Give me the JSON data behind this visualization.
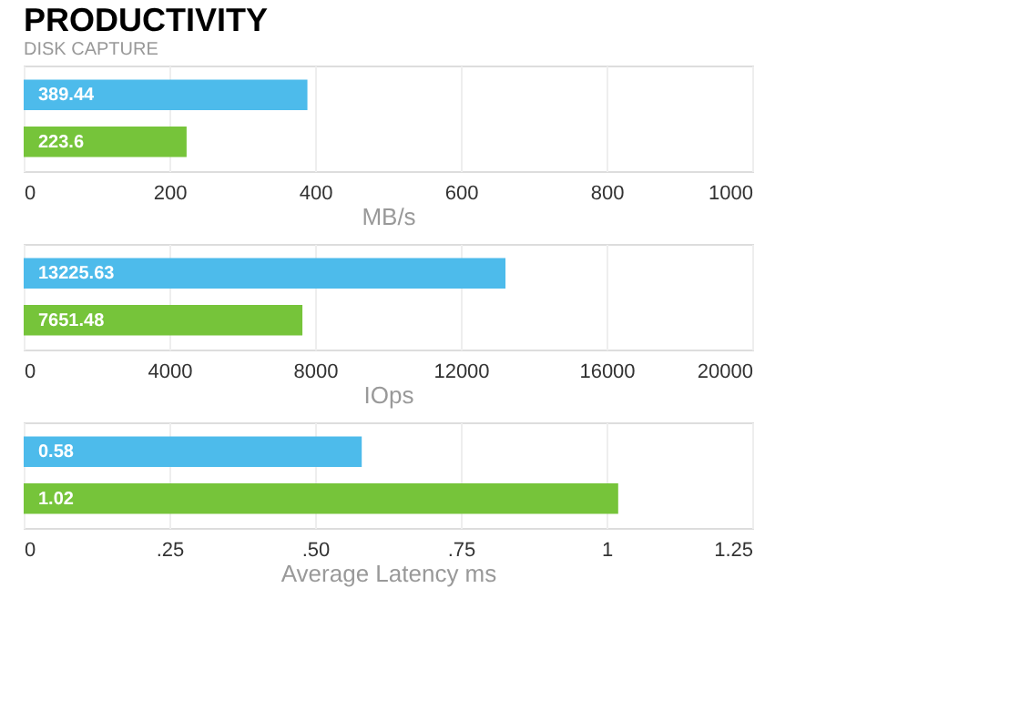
{
  "chart_data": [
    {
      "type": "bar",
      "orientation": "horizontal",
      "title": "PRODUCTIVITY",
      "subtitle": "DISK CAPTURE",
      "categories": [
        null,
        null
      ],
      "values": [
        389.44,
        223.6
      ],
      "colors": [
        "#4dbbeb",
        "#76c43a"
      ],
      "data_labels": true,
      "xlabel": "MB/s",
      "xlim": [
        0,
        1000
      ],
      "xticks": [
        0,
        200,
        400,
        600,
        800,
        1000
      ],
      "grid": "x"
    },
    {
      "type": "bar",
      "orientation": "horizontal",
      "categories": [
        null,
        null
      ],
      "values": [
        13225.63,
        7651.48
      ],
      "colors": [
        "#4dbbeb",
        "#76c43a"
      ],
      "data_labels": true,
      "xlabel": "IOps",
      "xlim": [
        0,
        20000
      ],
      "xticks": [
        0,
        4000,
        8000,
        12000,
        16000,
        20000
      ],
      "grid": "x"
    },
    {
      "type": "bar",
      "orientation": "horizontal",
      "categories": [
        null,
        null
      ],
      "values": [
        0.58,
        1.02
      ],
      "colors": [
        "#4dbbeb",
        "#76c43a"
      ],
      "data_labels": true,
      "xlabel": "Average Latency ms",
      "xlim": [
        0,
        1.25
      ],
      "xticks": [
        0,
        {
          "value": 0.25,
          "label": ".25"
        },
        {
          "value": 0.5,
          "label": ".50"
        },
        {
          "value": 0.75,
          "label": ".75"
        },
        1,
        1.25
      ],
      "grid": "x"
    }
  ]
}
